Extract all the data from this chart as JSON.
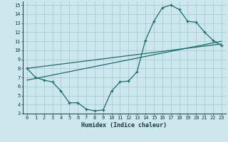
{
  "xlabel": "Humidex (Indice chaleur)",
  "bg_color": "#cce8ee",
  "line_color": "#1e6b6b",
  "grid_color": "#aaccd4",
  "xlim": [
    -0.5,
    23.5
  ],
  "ylim": [
    3,
    15.4
  ],
  "xticks": [
    0,
    1,
    2,
    3,
    4,
    5,
    6,
    7,
    8,
    9,
    10,
    11,
    12,
    13,
    14,
    15,
    16,
    17,
    18,
    19,
    20,
    21,
    22,
    23
  ],
  "yticks": [
    3,
    4,
    5,
    6,
    7,
    8,
    9,
    10,
    11,
    12,
    13,
    14,
    15
  ],
  "curve_x": [
    0,
    1,
    2,
    3,
    4,
    5,
    6,
    7,
    8,
    9,
    10,
    11,
    12,
    13,
    14,
    15,
    16,
    17,
    18,
    19,
    20,
    21,
    22,
    23
  ],
  "curve_y": [
    8.0,
    7.0,
    6.7,
    6.5,
    5.5,
    4.2,
    4.2,
    3.5,
    3.3,
    3.4,
    5.5,
    6.5,
    6.6,
    7.6,
    11.1,
    13.2,
    14.7,
    15.0,
    14.5,
    13.2,
    13.1,
    12.0,
    11.1,
    10.5
  ],
  "line1_x": [
    0,
    23
  ],
  "line1_y": [
    8.0,
    10.7
  ],
  "line2_x": [
    0,
    23
  ],
  "line2_y": [
    6.7,
    11.0
  ]
}
